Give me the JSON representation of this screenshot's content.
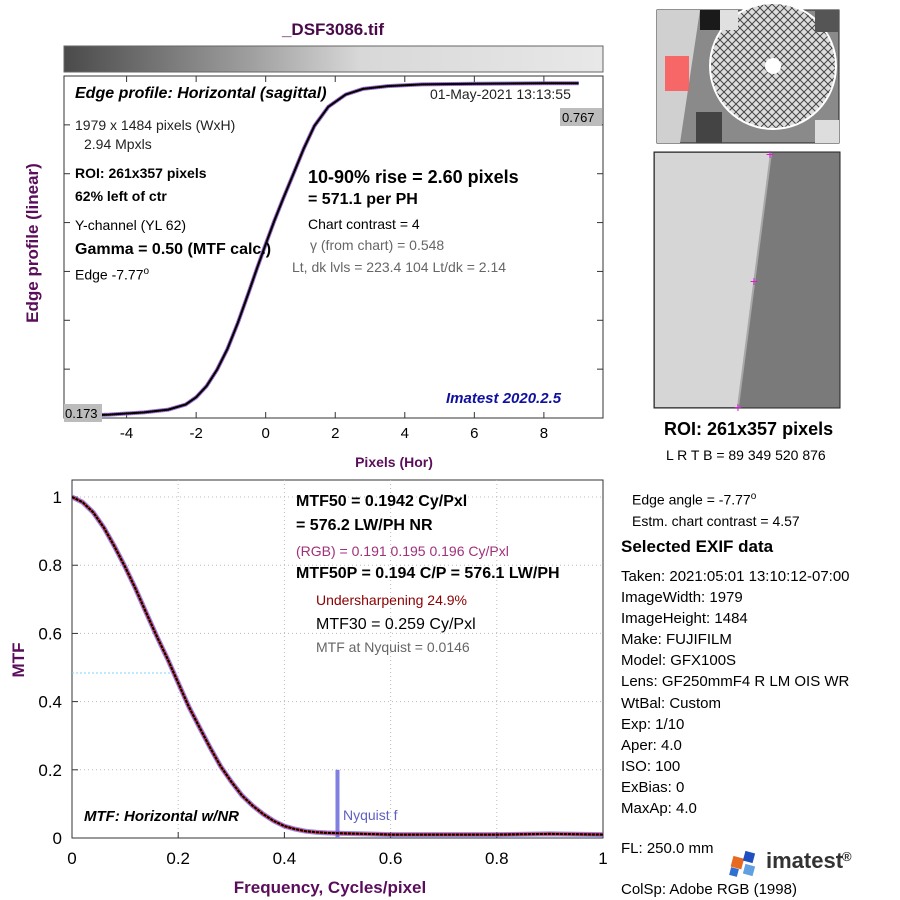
{
  "title": "_DSF3086.tif",
  "top_panel": {
    "heading": "Edge profile: Horizontal (sagittal)",
    "timestamp": "01-May-2021 13:13:55",
    "size_line": "1979 x 1484 pixels (WxH)",
    "mpxls_line": "2.94 Mpxls",
    "roi_line": "ROI:  261x357 pixels",
    "position_line": "62% left of ctr",
    "channel_line": "Y-channel  (YL 62)",
    "gamma_line": "Gamma = 0.50 (MTF calc.)",
    "edge_prefix": "Edge  -7.77",
    "edge_suffix": "o",
    "rise_line": "10-90% rise = 2.60 pixels",
    "per_ph_line": "=  571.1 per PH",
    "contrast_line": "Chart contrast = 4",
    "gamma_chart_symbol": "γ",
    "gamma_chart_text": "(from chart) = 0.548",
    "levels_line": "Lt, dk lvls = 223.4  104  Lt/dk = 2.14",
    "version_label": "Imatest 2020.2.5",
    "high_marker": "0.767",
    "low_marker": "0.173"
  },
  "bottom_panel": {
    "mtf50_line": "MTF50 = 0.1942 Cy/Pxl",
    "lwph_line": "= 576.2 LW/PH  NR",
    "rgb_line": "(RGB) = 0.191  0.195  0.196 Cy/Pxl",
    "mtf50p_line": "MTF50P = 0.194 C/P = 576.1 LW/PH",
    "undersharp_line": "Undersharpening 24.9%",
    "mtf30_line": "MTF30 = 0.259 Cy/Pxl",
    "nyquist_line": "MTF at Nyquist = 0.0146",
    "nyquist_label": "Nyquist f",
    "panel_label": "MTF: Horizontal w/NR"
  },
  "right_panel": {
    "roi_label": "ROI:  261x357 pixels",
    "lrtb_line": "L R  T B = 89 349  520 876",
    "edge_angle_prefix": "Edge angle = -7.77",
    "edge_angle_suffix": "o",
    "contrast_est": "Estm. chart contrast = 4.57",
    "exif_heading": "Selected EXIF data",
    "exif": [
      "Taken: 2021:05:01 13:10:12-07:00",
      "ImageWidth:  1979",
      "ImageHeight:  1484",
      "Make:  FUJIFILM",
      "Model:  GFX100S",
      "Lens:   GF250mmF4 R LM OIS WR",
      "WtBal:  Custom",
      "Exp:    1/10",
      "Aper:   4.0",
      "ISO:    100",
      "ExBias:  0",
      "MaxAp:  4.0"
    ],
    "fl_line": "FL:      250.0 mm",
    "colsp_line": "ColSp:  Adobe RGB (1998)",
    "logo_text": "imatest",
    "logo_mark": "®",
    "logo_icon": "imatest-logo-icon"
  },
  "colors": {
    "title": "#4a0a4a",
    "axis_label": "#5a0d5a",
    "version": "#1010a0",
    "rgb_line": "#a0307a",
    "undersharp": "#8b0000",
    "nyquist_bar": "#8080e0",
    "magenta_marker": "#d020d0",
    "red_curve": "#e03030",
    "blue_curve": "#6060ff"
  },
  "chart_data": [
    {
      "type": "line",
      "name": "edge-profile",
      "ylabel": "Edge profile (linear)",
      "xlabel": "Pixels (Hor)",
      "x_ticks": [
        -4,
        -2,
        0,
        2,
        4,
        6,
        8
      ],
      "xlim": [
        -5.8,
        9.7
      ],
      "ylim": [
        0.17,
        0.78
      ],
      "grid": false,
      "low_level": 0.173,
      "high_level": 0.767,
      "series": [
        {
          "x": [
            -5.8,
            -4.5,
            -3.5,
            -2.8,
            -2.3,
            -2.0,
            -1.7,
            -1.4,
            -1.1,
            -0.8,
            -0.5,
            -0.25,
            0.0,
            0.25,
            0.5,
            0.8,
            1.1,
            1.4,
            1.8,
            2.3,
            2.8,
            3.5,
            4.5,
            6.0,
            8.0,
            9.0
          ],
          "y": [
            0.173,
            0.176,
            0.18,
            0.185,
            0.194,
            0.207,
            0.227,
            0.256,
            0.293,
            0.34,
            0.392,
            0.437,
            0.48,
            0.522,
            0.561,
            0.606,
            0.651,
            0.691,
            0.725,
            0.747,
            0.757,
            0.762,
            0.765,
            0.766,
            0.767,
            0.767
          ]
        }
      ]
    },
    {
      "type": "line",
      "name": "mtf",
      "ylabel": "MTF",
      "xlabel": "Frequency, Cycles/pixel",
      "xlim": [
        0,
        1
      ],
      "ylim": [
        0,
        1.05
      ],
      "x_ticks": [
        0,
        0.2,
        0.4,
        0.6,
        0.8,
        1
      ],
      "y_ticks": [
        0,
        0.2,
        0.4,
        0.6,
        0.8,
        1
      ],
      "grid": true,
      "nyquist_x": 0.5,
      "nyquist_bar_height": 0.2,
      "series": [
        {
          "x": [
            0,
            0.02,
            0.04,
            0.06,
            0.08,
            0.1,
            0.12,
            0.14,
            0.16,
            0.18,
            0.2,
            0.22,
            0.24,
            0.26,
            0.28,
            0.3,
            0.32,
            0.34,
            0.36,
            0.38,
            0.4,
            0.42,
            0.44,
            0.46,
            0.48,
            0.5,
            0.55,
            0.6,
            0.7,
            0.8,
            0.9,
            1.0
          ],
          "y": [
            1.0,
            0.985,
            0.955,
            0.91,
            0.855,
            0.795,
            0.73,
            0.66,
            0.59,
            0.525,
            0.455,
            0.385,
            0.325,
            0.265,
            0.21,
            0.165,
            0.125,
            0.095,
            0.07,
            0.05,
            0.035,
            0.026,
            0.02,
            0.017,
            0.015,
            0.014,
            0.012,
            0.01,
            0.01,
            0.01,
            0.012,
            0.01
          ]
        }
      ]
    }
  ]
}
